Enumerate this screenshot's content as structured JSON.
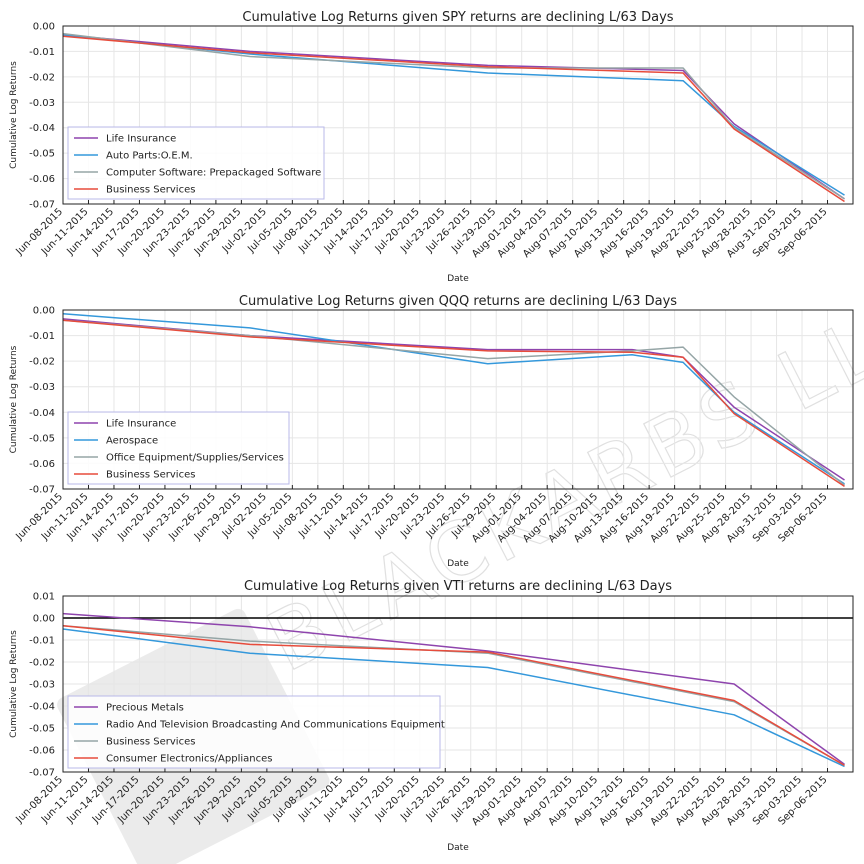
{
  "watermark": {
    "text": "BLACKARBS LLC"
  },
  "x_ticks": [
    "Jun-08-2015",
    "Jun-11-2015",
    "Jun-14-2015",
    "Jun-17-2015",
    "Jun-20-2015",
    "Jun-23-2015",
    "Jun-26-2015",
    "Jun-29-2015",
    "Jul-02-2015",
    "Jul-05-2015",
    "Jul-08-2015",
    "Jul-11-2015",
    "Jul-14-2015",
    "Jul-17-2015",
    "Jul-20-2015",
    "Jul-23-2015",
    "Jul-26-2015",
    "Jul-29-2015",
    "Aug-01-2015",
    "Aug-04-2015",
    "Aug-07-2015",
    "Aug-10-2015",
    "Aug-13-2015",
    "Aug-16-2015",
    "Aug-19-2015",
    "Aug-22-2015",
    "Aug-25-2015",
    "Aug-28-2015",
    "Aug-31-2015",
    "Sep-03-2015",
    "Sep-06-2015"
  ],
  "colors": {
    "purple": "#8e44ad",
    "blue": "#3498db",
    "gray": "#95a5a6",
    "red": "#e74c3c",
    "zero_line": "#000000"
  },
  "chart_data": [
    {
      "type": "line",
      "title": "Cumulative Log Returns given SPY returns are declining L/63 Days",
      "xlabel": "Date",
      "ylabel": "Cumulative Log Returns",
      "ylim": [
        -0.07,
        0.0
      ],
      "yticks": [
        "0.00",
        "-0.01",
        "-0.02",
        "-0.03",
        "-0.04",
        "-0.05",
        "-0.06",
        "-0.07"
      ],
      "grid": true,
      "legend": "lower-left",
      "x": [
        "Jun-08-2015",
        "Jun-30-2015",
        "Jul-28-2015",
        "Aug-20-2015",
        "Aug-26-2015",
        "Sep-08-2015"
      ],
      "series": [
        {
          "name": "Life Insurance",
          "color": "#8e44ad",
          "values": [
            -0.0035,
            -0.01,
            -0.0155,
            -0.0175,
            -0.0385,
            -0.068
          ]
        },
        {
          "name": "Auto Parts:O.E.M.",
          "color": "#3498db",
          "values": [
            -0.0035,
            -0.011,
            -0.0185,
            -0.0215,
            -0.0395,
            -0.0665
          ]
        },
        {
          "name": "Computer Software: Prepackaged Software",
          "color": "#95a5a6",
          "values": [
            -0.003,
            -0.012,
            -0.0165,
            -0.0165,
            -0.04,
            -0.068
          ]
        },
        {
          "name": "Business Services",
          "color": "#e74c3c",
          "values": [
            -0.004,
            -0.0105,
            -0.016,
            -0.0185,
            -0.0405,
            -0.069
          ]
        }
      ]
    },
    {
      "type": "line",
      "title": "Cumulative Log Returns given QQQ returns are declining L/63 Days",
      "xlabel": "Date",
      "ylabel": "Cumulative Log Returns",
      "ylim": [
        -0.07,
        0.0
      ],
      "yticks": [
        "0.00",
        "-0.01",
        "-0.02",
        "-0.03",
        "-0.04",
        "-0.05",
        "-0.06",
        "-0.07"
      ],
      "grid": true,
      "legend": "lower-left",
      "x": [
        "Jun-08-2015",
        "Jun-30-2015",
        "Jul-28-2015",
        "Aug-14-2015",
        "Aug-20-2015",
        "Aug-26-2015",
        "Sep-08-2015"
      ],
      "series": [
        {
          "name": "Life Insurance",
          "color": "#8e44ad",
          "values": [
            -0.0035,
            -0.01,
            -0.0155,
            -0.0155,
            -0.0185,
            -0.038,
            -0.0665
          ]
        },
        {
          "name": "Aerospace",
          "color": "#3498db",
          "values": [
            -0.0015,
            -0.007,
            -0.021,
            -0.0175,
            -0.0205,
            -0.04,
            -0.068
          ]
        },
        {
          "name": "Office Equipment/Supplies/Services",
          "color": "#95a5a6",
          "values": [
            -0.004,
            -0.01,
            -0.019,
            -0.016,
            -0.0145,
            -0.034,
            -0.0685
          ]
        },
        {
          "name": "Business Services",
          "color": "#e74c3c",
          "values": [
            -0.004,
            -0.0105,
            -0.016,
            -0.0165,
            -0.0185,
            -0.0405,
            -0.069
          ]
        }
      ]
    },
    {
      "type": "line",
      "title": "Cumulative Log Returns given VTI returns are declining L/63 Days",
      "xlabel": "Date",
      "ylabel": "Cumulative Log Returns",
      "ylim": [
        -0.07,
        0.01
      ],
      "yticks": [
        "0.01",
        "0.00",
        "-0.01",
        "-0.02",
        "-0.03",
        "-0.04",
        "-0.05",
        "-0.06",
        "-0.07"
      ],
      "grid": true,
      "legend": "lower-left",
      "zero_line": true,
      "x": [
        "Jun-08-2015",
        "Jun-30-2015",
        "Jul-28-2015",
        "Aug-26-2015",
        "Sep-08-2015"
      ],
      "series": [
        {
          "name": "Precious Metals",
          "color": "#8e44ad",
          "values": [
            0.002,
            -0.004,
            -0.015,
            -0.03,
            -0.0665
          ]
        },
        {
          "name": "Radio And Television Broadcasting And Communications Equipment",
          "color": "#3498db",
          "values": [
            -0.005,
            -0.016,
            -0.0225,
            -0.044,
            -0.0675
          ]
        },
        {
          "name": "Business Services",
          "color": "#95a5a6",
          "values": [
            -0.0035,
            -0.0105,
            -0.016,
            -0.038,
            -0.067
          ]
        },
        {
          "name": "Consumer Electronics/Appliances",
          "color": "#e74c3c",
          "values": [
            -0.0035,
            -0.012,
            -0.0155,
            -0.0375,
            -0.067
          ]
        }
      ]
    }
  ]
}
